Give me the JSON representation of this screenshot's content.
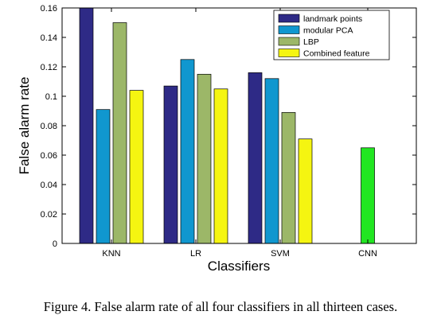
{
  "chart_data": {
    "type": "bar",
    "title": "",
    "xlabel": "Classifiers",
    "ylabel": "False alarm rate",
    "categories": [
      "KNN",
      "LR",
      "SVM",
      "CNN"
    ],
    "ylim": [
      0,
      0.16
    ],
    "yticks": [
      0,
      0.02,
      0.04,
      0.06,
      0.08,
      0.1,
      0.12,
      0.14,
      0.16
    ],
    "ytick_labels": [
      "0",
      "0.02",
      "0.04",
      "0.06",
      "0.08",
      "0.1",
      "0.12",
      "0.14",
      "0.16"
    ],
    "grid": false,
    "legend_position": "top-right",
    "series": [
      {
        "name": "landmark points",
        "color": "#2e2a86",
        "values": [
          0.16,
          0.107,
          0.116,
          null
        ]
      },
      {
        "name": "modular PCA",
        "color": "#1097cf",
        "values": [
          0.091,
          0.125,
          0.112,
          null
        ]
      },
      {
        "name": "LBP",
        "color": "#9cb768",
        "values": [
          0.15,
          0.115,
          0.089,
          null
        ]
      },
      {
        "name": "Combined feature",
        "color": "#f5f511",
        "values": [
          0.104,
          0.105,
          0.071,
          null
        ]
      }
    ],
    "extra_bars": [
      {
        "category": "CNN",
        "value": 0.065,
        "color": "#22e622"
      }
    ]
  },
  "caption": "Figure 4. False alarm rate of all four classifiers in all thirteen cases."
}
